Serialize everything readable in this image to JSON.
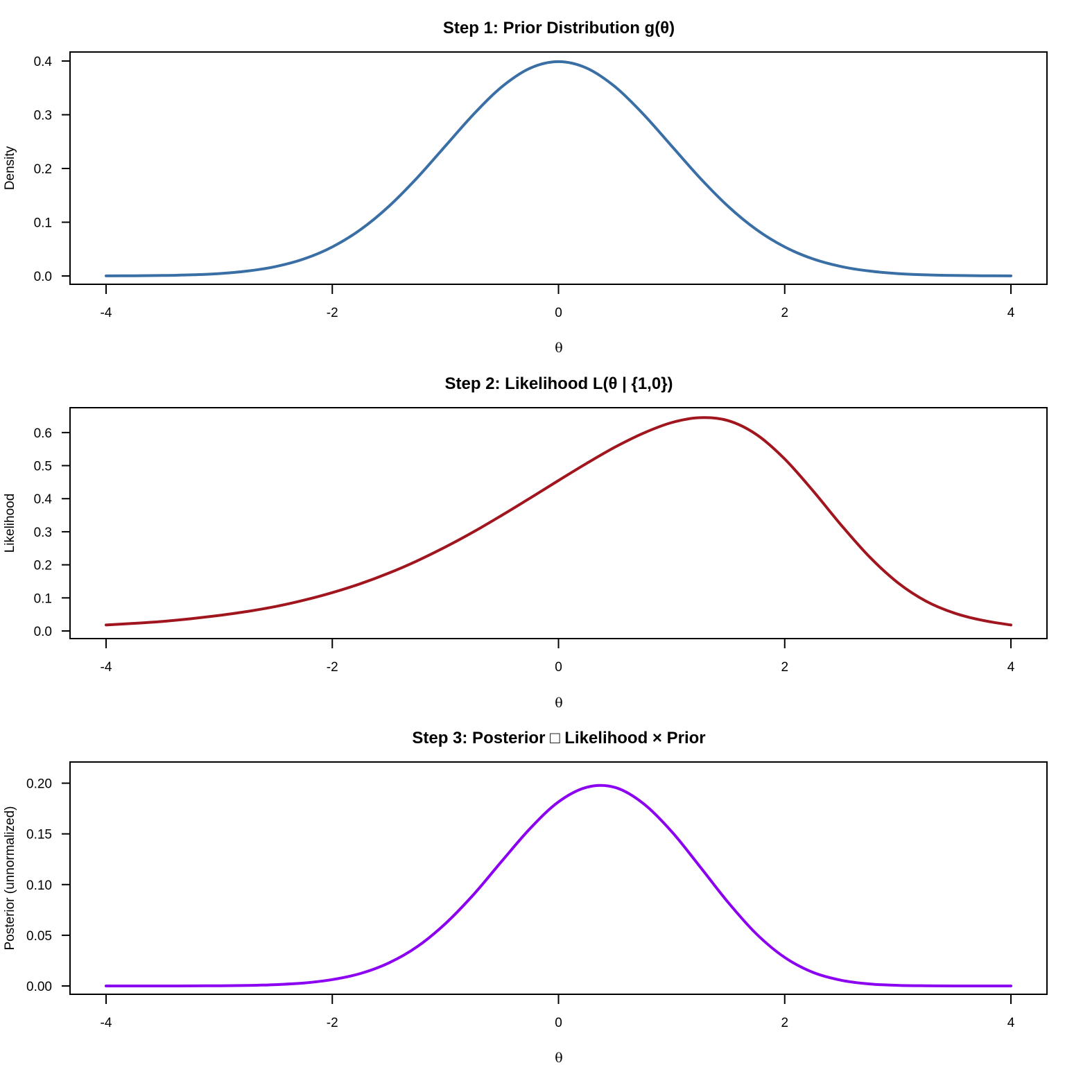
{
  "chart_data": [
    {
      "type": "line",
      "title": "Step 1: Prior Distribution g(θ)",
      "xlabel": "θ",
      "ylabel": "Density",
      "xlim": [
        -4,
        4
      ],
      "ylim": [
        0,
        0.4
      ],
      "xticks": [
        "-4",
        "-2",
        "0",
        "2",
        "4"
      ],
      "yticks": [
        "0.0",
        "0.1",
        "0.2",
        "0.3",
        "0.4"
      ],
      "ytick_values": [
        0,
        0.1,
        0.2,
        0.3,
        0.4
      ],
      "color": "#3A6FA5",
      "grid": false,
      "series": [
        {
          "name": "Prior",
          "x": [
            -4,
            -3.75,
            -3.5,
            -3.25,
            -3,
            -2.75,
            -2.5,
            -2.25,
            -2,
            -1.75,
            -1.5,
            -1.25,
            -1,
            -0.75,
            -0.5,
            -0.25,
            0,
            0.25,
            0.5,
            0.75,
            1,
            1.25,
            1.5,
            1.75,
            2,
            2.25,
            2.5,
            2.75,
            3,
            3.25,
            3.5,
            3.75,
            4
          ],
          "values": [
            0.0001,
            0.0004,
            0.0009,
            0.002,
            0.0044,
            0.0091,
            0.0175,
            0.0317,
            0.054,
            0.0863,
            0.1295,
            0.1826,
            0.242,
            0.3011,
            0.3521,
            0.3867,
            0.3989,
            0.3867,
            0.3521,
            0.3011,
            0.242,
            0.1826,
            0.1295,
            0.0863,
            0.054,
            0.0317,
            0.0175,
            0.0091,
            0.0044,
            0.002,
            0.0009,
            0.0004,
            0.0001
          ]
        }
      ]
    },
    {
      "type": "line",
      "title": "Step 2: Likelihood L(θ | {1,0})",
      "xlabel": "θ",
      "ylabel": "Likelihood",
      "xlim": [
        -4,
        4
      ],
      "ylim": [
        0,
        0.65
      ],
      "xticks": [
        "-4",
        "-2",
        "0",
        "2",
        "4"
      ],
      "yticks": [
        "0.0",
        "0.1",
        "0.2",
        "0.3",
        "0.4",
        "0.5",
        "0.6"
      ],
      "ytick_values": [
        0,
        0.1,
        0.2,
        0.3,
        0.4,
        0.5,
        0.6
      ],
      "color": "#A0151E",
      "grid": false,
      "series": [
        {
          "name": "Likelihood",
          "x": [
            -4,
            -3.75,
            -3.5,
            -3.25,
            -3,
            -2.75,
            -2.5,
            -2.25,
            -2,
            -1.75,
            -1.5,
            -1.25,
            -1,
            -0.75,
            -0.5,
            -0.25,
            0,
            0.25,
            0.5,
            0.75,
            1,
            1.25,
            1.5,
            1.75,
            2,
            2.25,
            2.5,
            2.75,
            3,
            3.25,
            3.5,
            3.75,
            4
          ],
          "values": [
            0.018,
            0.023,
            0.029,
            0.037,
            0.047,
            0.059,
            0.074,
            0.093,
            0.116,
            0.143,
            0.175,
            0.212,
            0.254,
            0.3,
            0.35,
            0.402,
            0.455,
            0.507,
            0.556,
            0.598,
            0.63,
            0.645,
            0.636,
            0.594,
            0.52,
            0.424,
            0.32,
            0.224,
            0.146,
            0.09,
            0.054,
            0.032,
            0.018
          ]
        }
      ]
    },
    {
      "type": "line",
      "title": "Step 3: Posterior □ Likelihood × Prior",
      "xlabel": "θ",
      "ylabel": "Posterior (unnormalized)",
      "xlim": [
        -4,
        4
      ],
      "ylim": [
        0,
        0.212
      ],
      "xticks": [
        "-4",
        "-2",
        "0",
        "2",
        "4"
      ],
      "yticks": [
        "0.00",
        "0.05",
        "0.10",
        "0.15",
        "0.20"
      ],
      "ytick_values": [
        0,
        0.05,
        0.1,
        0.15,
        0.2
      ],
      "color": "#8B00F0",
      "grid": false,
      "series": [
        {
          "name": "Posterior",
          "x": [
            -4,
            -3.75,
            -3.5,
            -3.25,
            -3,
            -2.75,
            -2.5,
            -2.25,
            -2,
            -1.75,
            -1.5,
            -1.25,
            -1,
            -0.75,
            -0.5,
            -0.25,
            0,
            0.25,
            0.5,
            0.75,
            1,
            1.25,
            1.5,
            1.75,
            2,
            2.25,
            2.5,
            2.75,
            3,
            3.25,
            3.5,
            3.75,
            4
          ],
          "values": [
            0.0,
            0.0,
            0.0,
            0.0001,
            0.0002,
            0.0005,
            0.0013,
            0.0029,
            0.0063,
            0.0123,
            0.0227,
            0.0387,
            0.0615,
            0.0903,
            0.1232,
            0.1554,
            0.1816,
            0.196,
            0.1958,
            0.18,
            0.1524,
            0.1178,
            0.0824,
            0.0513,
            0.0281,
            0.0134,
            0.0056,
            0.002,
            0.0006,
            0.0002,
            0.0,
            0.0,
            0.0
          ]
        }
      ]
    }
  ]
}
